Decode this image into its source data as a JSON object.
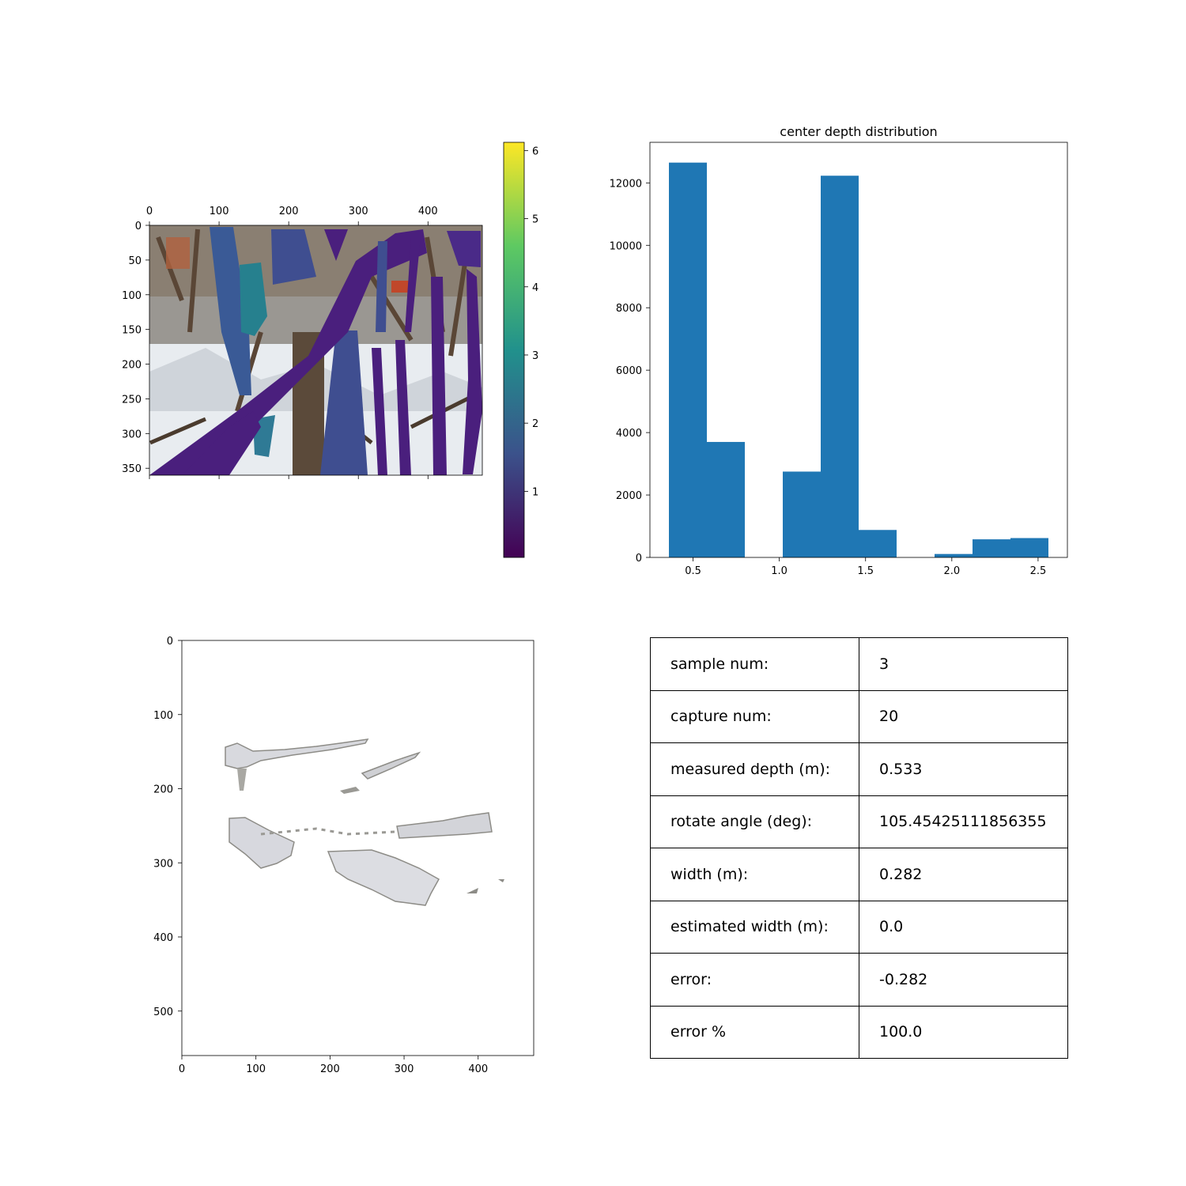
{
  "depth_overlay": {
    "x_ticks": [
      "0",
      "100",
      "200",
      "300",
      "400"
    ],
    "y_ticks": [
      "0",
      "50",
      "100",
      "150",
      "200",
      "250",
      "300",
      "350"
    ],
    "colorbar": {
      "colormap": "viridis",
      "ticks": [
        "1",
        "2",
        "3",
        "4",
        "5",
        "6"
      ],
      "colors": [
        "#440154",
        "#3b528b",
        "#21918c",
        "#5ec962",
        "#fde725"
      ]
    }
  },
  "chart_data": [
    {
      "type": "bar",
      "title": "center depth distribution",
      "xlabel": "",
      "ylabel": "",
      "bin_edges": [
        0.36,
        0.58,
        0.8,
        1.02,
        1.24,
        1.46,
        1.68,
        1.9,
        2.12,
        2.34,
        2.56
      ],
      "values": [
        12650,
        3700,
        0,
        2750,
        12230,
        880,
        0,
        110,
        580,
        620
      ],
      "color": "#1f77b4",
      "xlim": [
        0.25,
        2.67
      ],
      "ylim": [
        0,
        13300
      ],
      "x_ticks": [
        "0.5",
        "1.0",
        "1.5",
        "2.0",
        "2.5"
      ],
      "y_ticks": [
        "0",
        "2000",
        "4000",
        "6000",
        "8000",
        "10000",
        "12000"
      ],
      "grid": false
    }
  ],
  "point_cloud": {
    "x_ticks": [
      "0",
      "100",
      "200",
      "300",
      "400"
    ],
    "y_ticks": [
      "0",
      "100",
      "200",
      "300",
      "400",
      "500"
    ]
  },
  "info_table": {
    "rows": [
      {
        "label": "sample num:",
        "value": "3"
      },
      {
        "label": "capture num:",
        "value": "20"
      },
      {
        "label": "measured depth (m):",
        "value": "0.533"
      },
      {
        "label": "rotate angle (deg):",
        "value": "105.45425111856355"
      },
      {
        "label": "width (m):",
        "value": "0.282"
      },
      {
        "label": "estimated width (m):",
        "value": "0.0"
      },
      {
        "label": "error:",
        "value": "-0.282"
      },
      {
        "label": "error %",
        "value": "100.0"
      }
    ]
  }
}
